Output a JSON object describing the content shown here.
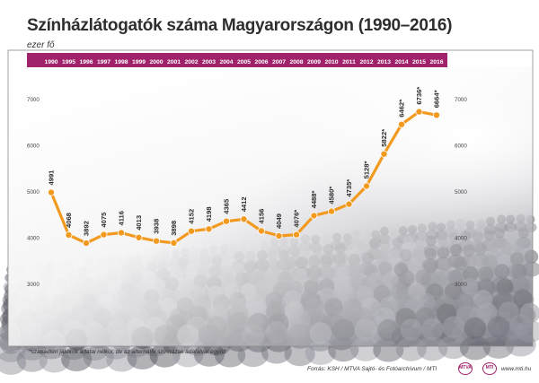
{
  "title": "Színházlátogatók száma Magyarországon (1990–2016)",
  "unit_label": "ezer fő",
  "footnote": "*szabadtéri játékok adatai nélkül, de az alternatív színházak adataival együtt",
  "source": "Forrás: KSH / MTVA Sajtó- és Fotóarchívum / MTI",
  "website": "www.mti.hu",
  "colors": {
    "accent": "#f29a1f",
    "band": "#a0226a",
    "text": "#2e2e2e"
  },
  "chart_data": {
    "type": "line",
    "categories": [
      "1990",
      "1995",
      "1996",
      "1997",
      "1998",
      "1999",
      "2000",
      "2001",
      "2002",
      "2003",
      "2004",
      "2005",
      "2006",
      "2007",
      "2008",
      "2009",
      "2010",
      "2011",
      "2012",
      "2013",
      "2014",
      "2015",
      "2016"
    ],
    "values": [
      4991,
      4068,
      3892,
      4075,
      4116,
      4013,
      3938,
      3898,
      4152,
      4198,
      4365,
      4412,
      4156,
      4049,
      4076,
      4488,
      4580,
      4735,
      5128,
      5822,
      6462,
      6736,
      6664
    ],
    "data_labels": [
      "4991",
      "4068",
      "3892",
      "4075",
      "4116",
      "4013",
      "3938",
      "3898",
      "4152",
      "4198",
      "4365",
      "4412",
      "4156",
      "4049",
      "4076*",
      "4488*",
      "4580*",
      "4735*",
      "5128*",
      "5822*",
      "6462*",
      "6736*",
      "6664*"
    ],
    "title": "Színházlátogatók száma Magyarországon (1990–2016)",
    "ylabel": "ezer fő",
    "y_ticks": [
      3000,
      4000,
      5000,
      6000,
      7000
    ],
    "y_tick_labels": [
      "3000",
      "4000",
      "5000",
      "6000",
      "7000"
    ],
    "ylim": [
      2500,
      7500
    ],
    "grid": false,
    "legend": "none"
  }
}
